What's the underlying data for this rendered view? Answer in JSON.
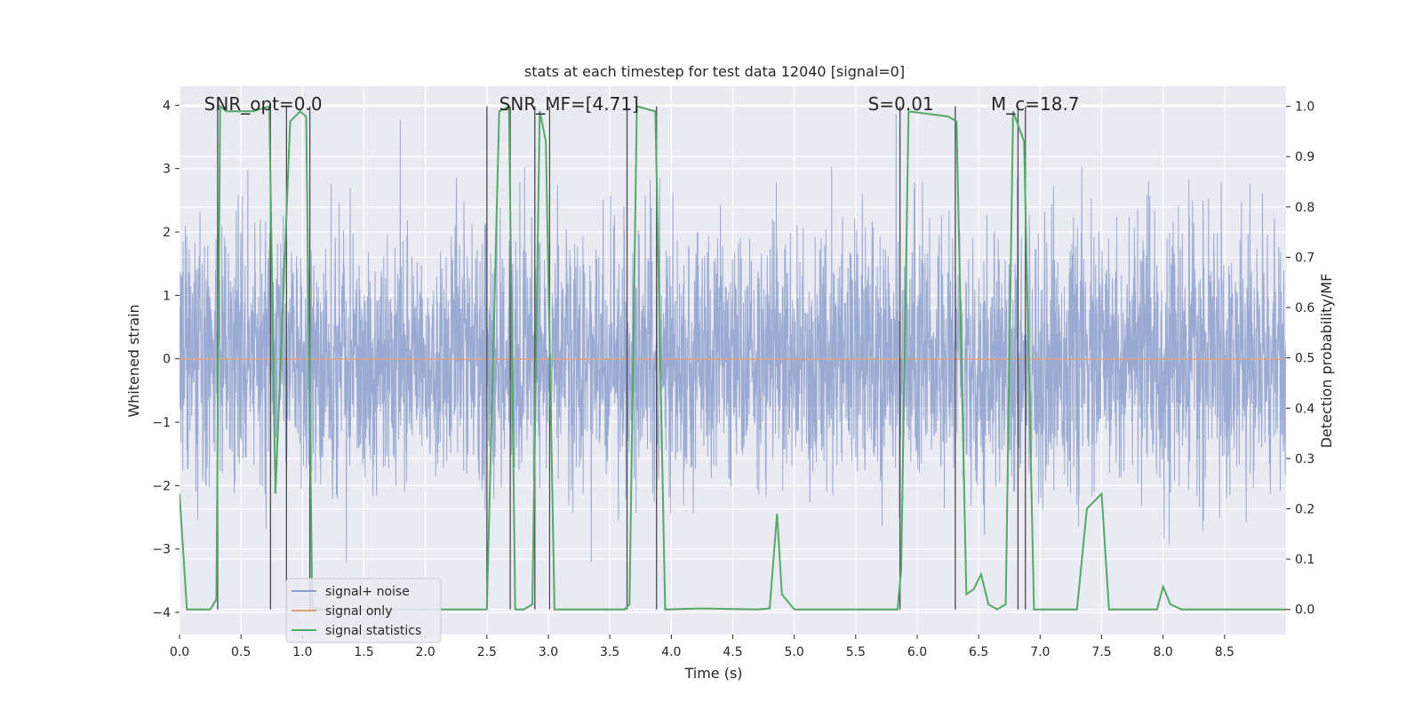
{
  "chart_data": {
    "type": "line",
    "title": "stats at each timestep for test data 12040 [signal=0]",
    "xlabel": "Time (s)",
    "ylabel": "Whitened strain",
    "ylabel_right": "Detection probability/MF",
    "xlim": [
      0,
      9
    ],
    "ylim": [
      -4.35,
      4.3
    ],
    "ylim_right": [
      -0.05,
      1.04
    ],
    "x_ticks": [
      "0.0",
      "0.5",
      "1.0",
      "1.5",
      "2.0",
      "2.5",
      "3.0",
      "3.5",
      "4.0",
      "4.5",
      "5.0",
      "5.5",
      "6.0",
      "6.5",
      "7.0",
      "7.5",
      "8.0",
      "8.5"
    ],
    "y_ticks": [
      "−4",
      "−3",
      "−2",
      "−1",
      "0",
      "1",
      "2",
      "3",
      "4"
    ],
    "y_ticks_right": [
      "0.0",
      "0.1",
      "0.2",
      "0.3",
      "0.4",
      "0.5",
      "0.6",
      "0.7",
      "0.8",
      "0.9",
      "1.0"
    ],
    "grid": true,
    "legend_position": "bottom-left",
    "annotations": [
      {
        "text": "SNR_opt=0.0",
        "x": 0.2
      },
      {
        "text": "SNR_MF=[4.71]",
        "x": 2.6
      },
      {
        "text": "S=0.01",
        "x": 5.6
      },
      {
        "text": "M_c=18.7",
        "x": 6.6
      }
    ],
    "series": [
      {
        "name": "signal+ noise",
        "color": "#8c9fcc",
        "kind": "noise",
        "sigma": 1.0
      },
      {
        "name": "signal only",
        "color": "#e1a07e",
        "kind": "flat",
        "value": 0
      },
      {
        "name": "signal statistics",
        "color": "#55a868",
        "kind": "probability",
        "axis": "right",
        "x": [
          0,
          0.06,
          0.25,
          0.3,
          0.33,
          0.38,
          0.6,
          0.73,
          0.78,
          0.9,
          0.98,
          1.03,
          1.08,
          1.15,
          2.5,
          2.6,
          2.68,
          2.73,
          2.8,
          2.87,
          2.93,
          2.98,
          3.05,
          3.62,
          3.66,
          3.72,
          3.87,
          3.95,
          4.25,
          4.7,
          4.8,
          4.86,
          4.9,
          5.0,
          5.84,
          5.87,
          5.93,
          6.25,
          6.32,
          6.4,
          6.46,
          6.52,
          6.58,
          6.65,
          6.72,
          6.78,
          6.87,
          6.95,
          7.3,
          7.38,
          7.5,
          7.56,
          7.95,
          8.0,
          8.06,
          8.15,
          9.0
        ],
        "y": [
          0.23,
          0.0,
          0.0,
          0.02,
          1.0,
          0.99,
          0.99,
          1.0,
          0.23,
          0.97,
          0.99,
          0.98,
          0.0,
          0.0,
          0.0,
          0.99,
          1.0,
          0.0,
          0.0,
          0.01,
          0.99,
          0.93,
          0.0,
          0.0,
          0.01,
          1.0,
          0.99,
          0.0,
          0.002,
          0.0,
          0.002,
          0.19,
          0.03,
          0.0,
          0.0,
          0.08,
          0.99,
          0.98,
          0.97,
          0.03,
          0.04,
          0.07,
          0.01,
          0.0,
          0.01,
          0.99,
          0.93,
          0.0,
          0.0,
          0.2,
          0.23,
          0.0,
          0.0,
          0.045,
          0.01,
          0.0,
          0.0
        ]
      },
      {
        "name": "",
        "color": "#4a4a4a",
        "kind": "vlines",
        "x": [
          0.31,
          0.74,
          0.87,
          1.06,
          2.5,
          2.69,
          2.89,
          3.01,
          3.64,
          3.88,
          5.86,
          6.31,
          6.82,
          6.88
        ]
      }
    ]
  }
}
